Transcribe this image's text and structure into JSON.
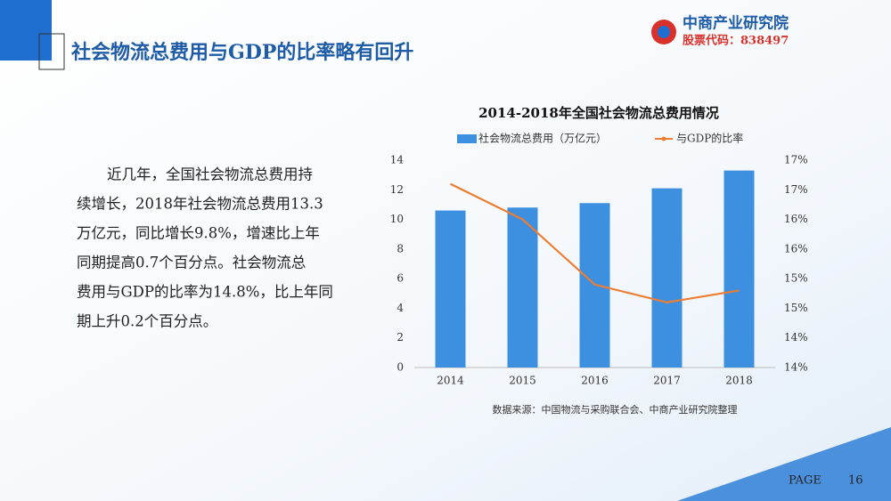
{
  "header": {
    "title": "社会物流总费用与GDP的比率略有回升",
    "logo_name": "中商产业研究院",
    "stock_code": "股票代码：838497"
  },
  "text_panel": {
    "lines": [
      "近几年，全国社会物流总费用持",
      "续增长，2018年社会物流总费用13.3",
      "万亿元，同比增长9.8%，增速比上年",
      "同期提高0.7个百分点。社会物流总",
      "费用与GDP的比率为14.8%，比上年同",
      "期上升0.2个百分点。"
    ]
  },
  "chart_data": {
    "type": "bar",
    "title": "2014-2018年全国社会物流总费用情况",
    "categories": [
      "2014",
      "2015",
      "2016",
      "2017",
      "2018"
    ],
    "series": [
      {
        "name": "社会物流总费用（万亿元）",
        "color": "#3d8fe0",
        "values": [
          10.6,
          10.8,
          11.1,
          12.1,
          13.3
        ]
      },
      {
        "name": "与GDP的比率",
        "color": "#ed7d31",
        "type": "line",
        "axis": "y2",
        "values": [
          16.6,
          16.0,
          14.9,
          14.6,
          14.8
        ]
      }
    ],
    "ylim": [
      0,
      14
    ],
    "yticks": [
      0,
      2,
      4,
      6,
      8,
      10,
      12,
      14
    ],
    "y2lim": [
      13.5,
      17
    ],
    "y2ticks": [
      {
        "value": 13.5,
        "label": "14%"
      },
      {
        "value": 14,
        "label": "14%"
      },
      {
        "value": 14.5,
        "label": "15%"
      },
      {
        "value": 15,
        "label": "15%"
      },
      {
        "value": 15.5,
        "label": "16%"
      },
      {
        "value": 16,
        "label": "16%"
      },
      {
        "value": 16.5,
        "label": "17%"
      },
      {
        "value": 17,
        "label": "17%"
      }
    ],
    "grid": false,
    "legend": "top",
    "source": "数据来源：中国物流与采购联合会、中商产业研究院整理"
  },
  "footer": {
    "page_label": "PAGE",
    "page_number": "16"
  }
}
